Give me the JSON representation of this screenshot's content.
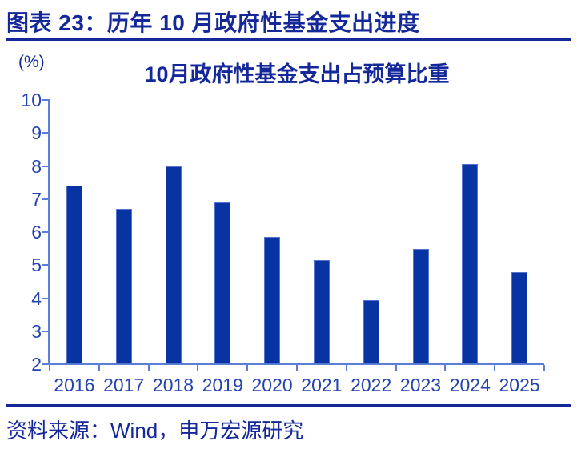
{
  "figure": {
    "header": "图表 23：历年 10 月政府性基金支出进度",
    "source": "资料来源：Wind，申万宏源研究"
  },
  "chart_data": {
    "type": "bar",
    "title": "10月政府性基金支出占预算比重",
    "unit_label": "(%)",
    "categories": [
      "2016",
      "2017",
      "2018",
      "2019",
      "2020",
      "2021",
      "2022",
      "2023",
      "2024",
      "2025"
    ],
    "values": [
      7.4,
      6.7,
      8.0,
      6.9,
      5.85,
      5.15,
      3.95,
      5.5,
      8.05,
      4.8
    ],
    "xlabel": "",
    "ylabel": "(%)",
    "ylim": [
      2,
      10
    ],
    "ytick_step": 1,
    "grid": false,
    "legend": "none",
    "colors": {
      "bar_fill": "#0834A3",
      "bar_border": "#5473CE",
      "axis": "#5B7FD6",
      "tick_label": "#2343AF",
      "heading_text": "#14289A"
    }
  }
}
